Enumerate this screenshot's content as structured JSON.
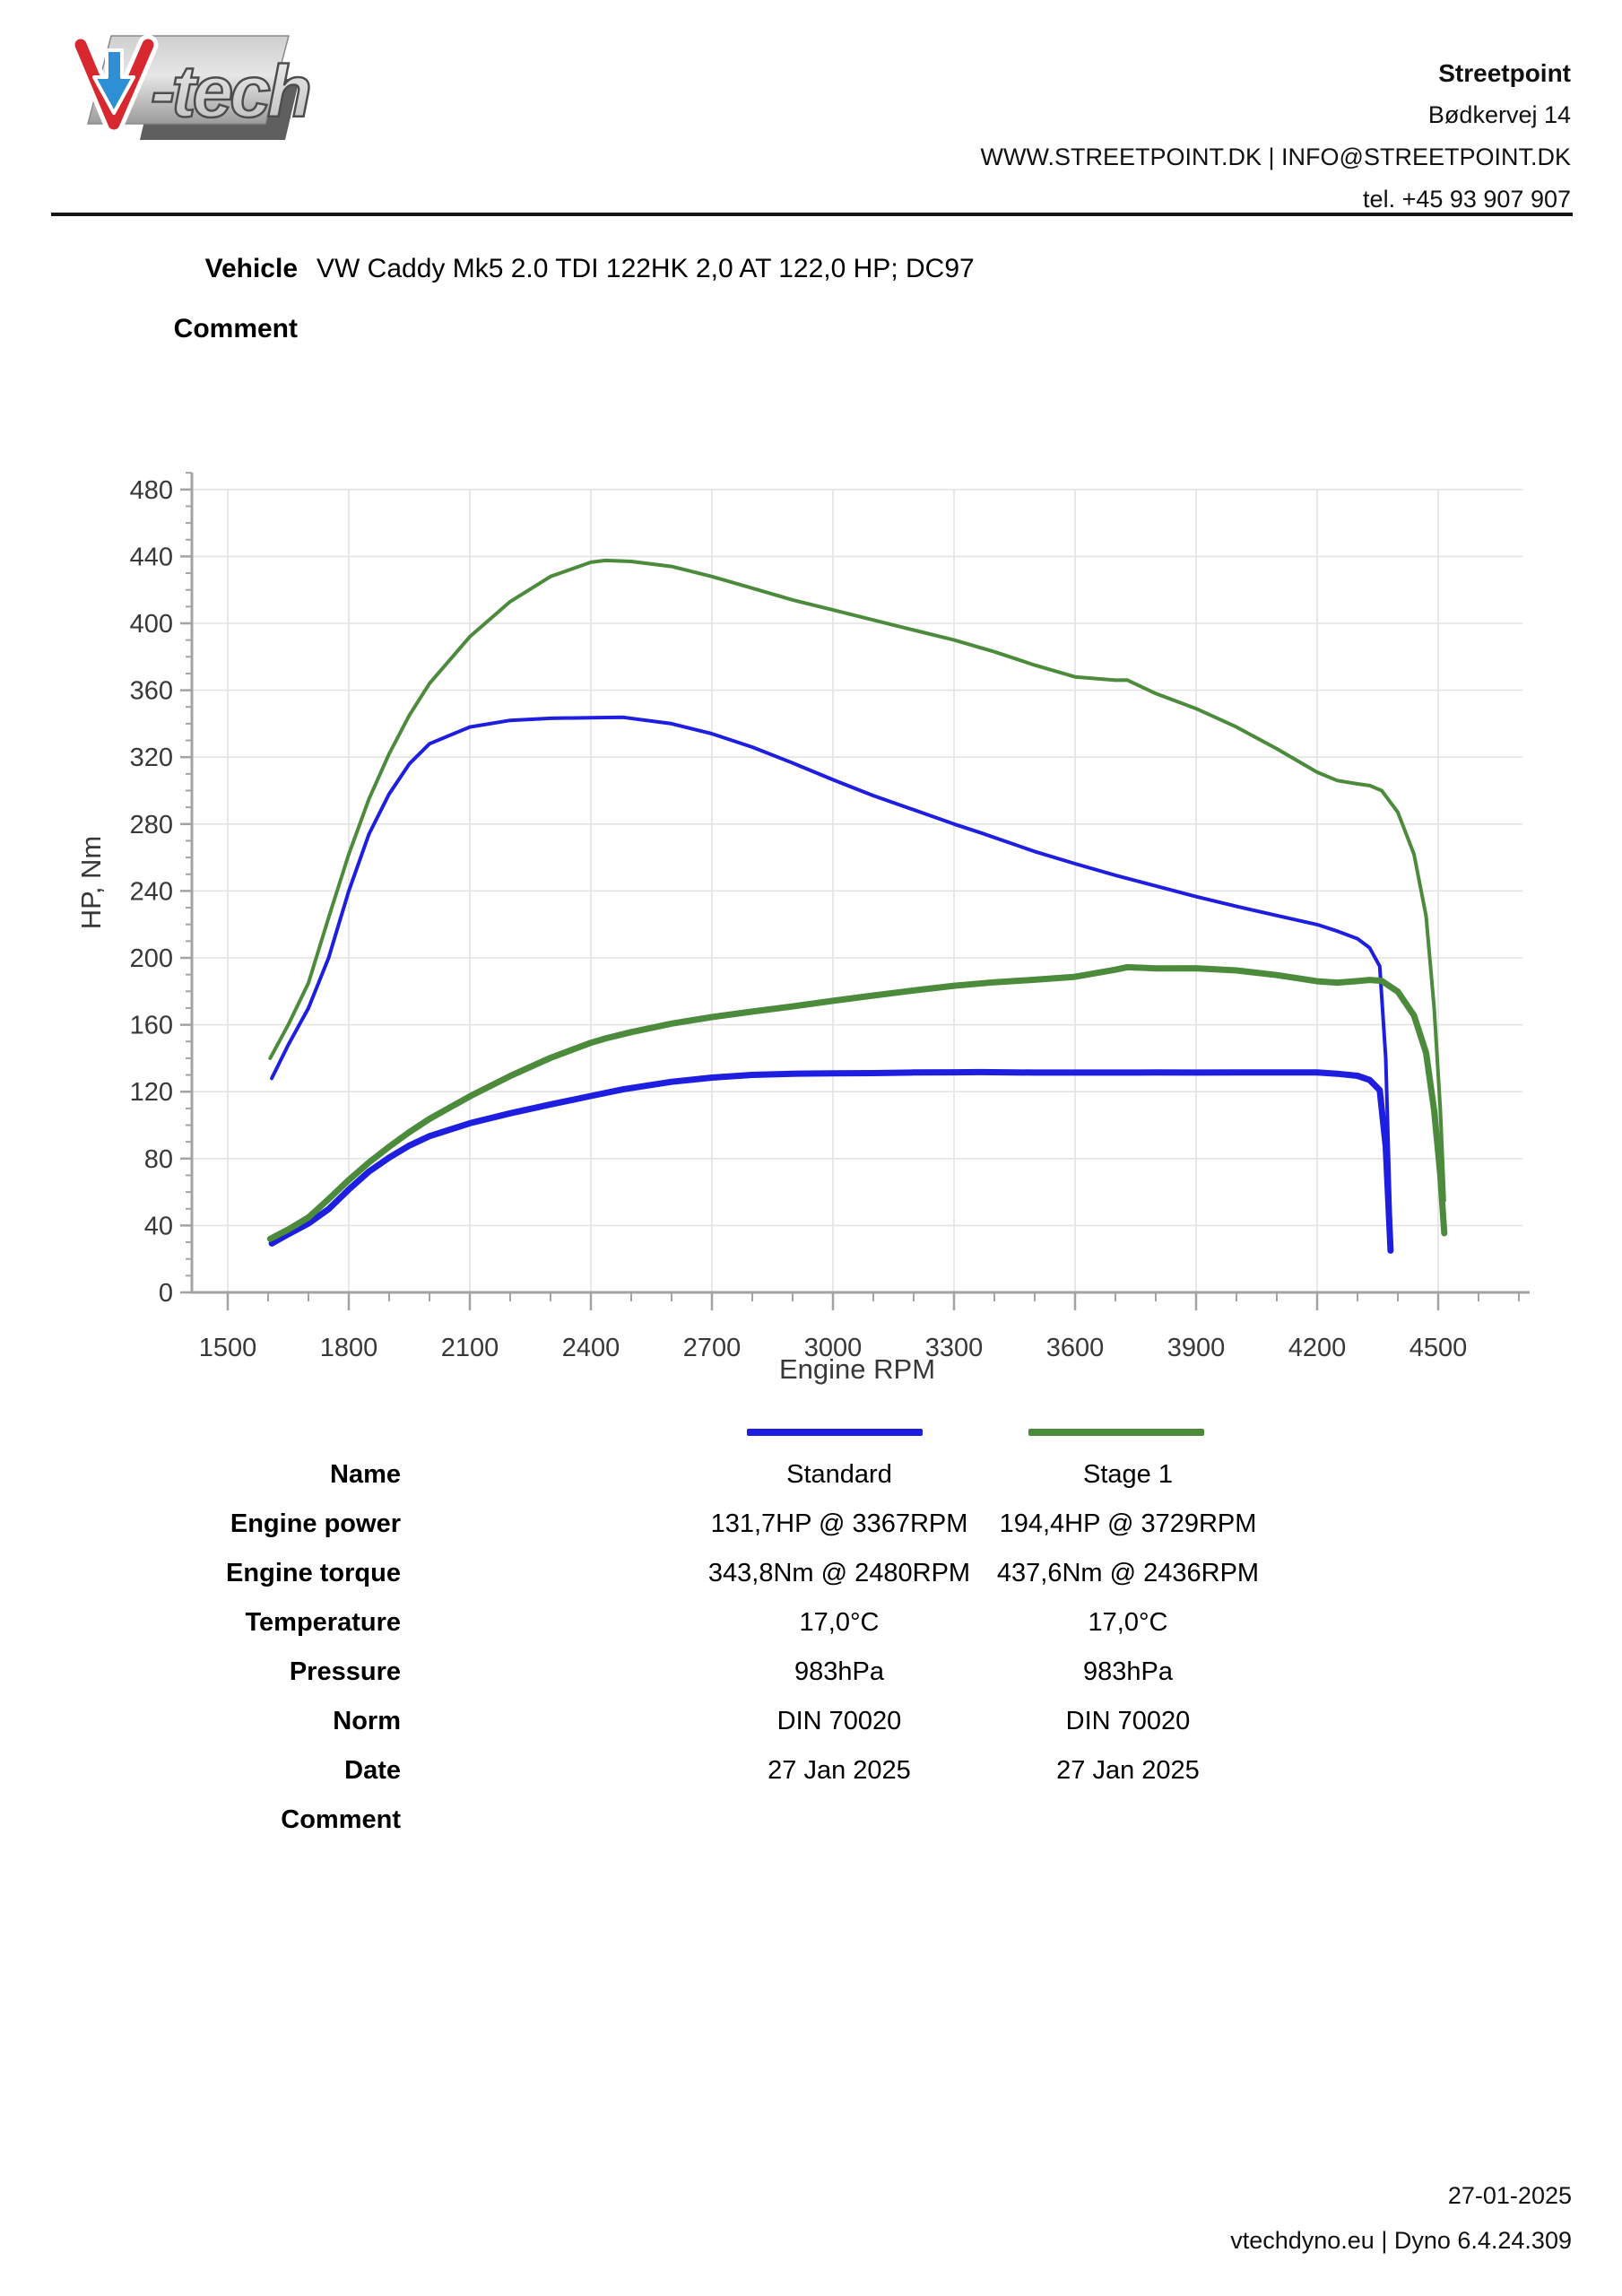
{
  "header": {
    "logo_alt": "V-tech",
    "logo_text": "-tech",
    "company": "Streetpoint",
    "address": "Bødkervej 14",
    "web_email": "WWW.STREETPOINT.DK | INFO@STREETPOINT.DK",
    "phone": "tel. +45 93 907 907"
  },
  "vehicle": {
    "label": "Vehicle",
    "value": "VW Caddy Mk5 2.0 TDI 122HK 2,0 AT 122,0 HP; DC97"
  },
  "comment": {
    "label": "Comment"
  },
  "chart_data": {
    "type": "line",
    "title": "",
    "xlabel": "Engine RPM",
    "ylabel": "HP, Nm",
    "xlim": [
      1411,
      4709
    ],
    "ylim": [
      0,
      489
    ],
    "x_ticks": [
      1500,
      1800,
      2100,
      2400,
      2700,
      3000,
      3300,
      3600,
      3900,
      4200,
      4500
    ],
    "y_ticks": [
      0,
      40,
      80,
      120,
      160,
      200,
      240,
      280,
      320,
      360,
      400,
      440,
      480
    ],
    "x_minor_step": 100,
    "y_minor_step": 10,
    "grid": true,
    "colors": {
      "standard": "#1e1ee0",
      "stage1": "#4c8a3c",
      "grid": "#e3e3e3",
      "axis": "#a3a3a3",
      "tick_text": "#383838"
    },
    "series": [
      {
        "name": "Standard torque",
        "unit": "Nm",
        "color": "#1e1ee0",
        "line_width": 4,
        "rpm": [
          1609,
          1650,
          1700,
          1750,
          1800,
          1850,
          1900,
          1950,
          2000,
          2100,
          2200,
          2300,
          2400,
          2480,
          2600,
          2700,
          2800,
          2900,
          3000,
          3100,
          3200,
          3300,
          3367,
          3500,
          3600,
          3700,
          3800,
          3900,
          4000,
          4100,
          4200,
          4250,
          4300,
          4330,
          4355,
          4370,
          4382
        ],
        "values": [
          128,
          148,
          170,
          200,
          240,
          274,
          298,
          316,
          328,
          338,
          342,
          343.2,
          343.6,
          343.8,
          340,
          334,
          326,
          316.5,
          306.5,
          297,
          288.5,
          280,
          274.7,
          263.6,
          256.3,
          249.4,
          243,
          236.6,
          230.8,
          225.3,
          219.9,
          216,
          211.5,
          206,
          195,
          140,
          40
        ]
      },
      {
        "name": "Stage 1 torque",
        "unit": "Nm",
        "color": "#4c8a3c",
        "line_width": 4,
        "rpm": [
          1605,
          1650,
          1700,
          1750,
          1800,
          1850,
          1900,
          1950,
          2000,
          2100,
          2200,
          2300,
          2400,
          2436,
          2500,
          2600,
          2700,
          2800,
          2900,
          3000,
          3100,
          3200,
          3300,
          3400,
          3500,
          3600,
          3700,
          3729,
          3800,
          3900,
          4000,
          4100,
          4200,
          4250,
          4300,
          4330,
          4360,
          4400,
          4440,
          4470,
          4490,
          4505,
          4515
        ],
        "values": [
          140,
          160,
          185,
          224,
          262,
          295,
          322,
          345,
          364,
          392,
          413,
          428,
          436.5,
          437.6,
          437,
          434,
          428,
          421,
          414,
          408,
          402,
          396,
          390,
          383,
          375,
          368,
          366,
          366.1,
          358,
          349,
          338,
          325,
          311,
          306,
          304,
          303,
          300,
          287,
          262,
          225,
          170,
          110,
          55
        ]
      },
      {
        "name": "Standard power",
        "unit": "HP",
        "color": "#1e1ee0",
        "line_width": 7,
        "rpm": [
          1609,
          1650,
          1700,
          1750,
          1800,
          1850,
          1900,
          1950,
          2000,
          2100,
          2200,
          2300,
          2400,
          2480,
          2600,
          2700,
          2800,
          2900,
          3000,
          3100,
          3200,
          3300,
          3367,
          3500,
          3600,
          3700,
          3800,
          3900,
          4000,
          4100,
          4200,
          4250,
          4300,
          4330,
          4355,
          4370,
          4382
        ],
        "values": [
          29.3,
          34.8,
          41.2,
          49.8,
          61.5,
          72.2,
          80.6,
          87.8,
          93.4,
          101.1,
          107.1,
          112.4,
          117.4,
          121.4,
          125.9,
          128.4,
          130,
          130.7,
          131,
          131.1,
          131.5,
          131.6,
          131.7,
          131.4,
          131.4,
          131.4,
          131.5,
          131.4,
          131.5,
          131.5,
          131.5,
          130.7,
          129.5,
          127,
          120.9,
          87.1,
          25
        ]
      },
      {
        "name": "Stage 1 power",
        "unit": "HP",
        "color": "#4c8a3c",
        "line_width": 7,
        "rpm": [
          1605,
          1650,
          1700,
          1750,
          1800,
          1850,
          1900,
          1950,
          2000,
          2100,
          2200,
          2300,
          2400,
          2436,
          2500,
          2600,
          2700,
          2800,
          2900,
          3000,
          3100,
          3200,
          3300,
          3400,
          3500,
          3600,
          3700,
          3729,
          3800,
          3900,
          4000,
          4100,
          4200,
          4250,
          4300,
          4330,
          4360,
          4400,
          4440,
          4470,
          4490,
          4505,
          4515
        ],
        "values": [
          32,
          37.6,
          44.8,
          55.8,
          67.2,
          77.7,
          87.1,
          95.8,
          103.7,
          117.2,
          129.4,
          140.2,
          149.2,
          151.8,
          155.6,
          160.7,
          164.6,
          167.9,
          171,
          174.3,
          177.5,
          180.5,
          183.3,
          185.4,
          186.9,
          188.7,
          192.9,
          194.4,
          193.7,
          193.8,
          192.5,
          189.7,
          186,
          185.2,
          186.1,
          186.8,
          186.3,
          179.8,
          165.6,
          143.2,
          108.7,
          70.6,
          35.4
        ]
      }
    ],
    "legend_position": "below"
  },
  "table": {
    "rows": [
      {
        "label": "Name",
        "standard": "Standard",
        "stage1": "Stage 1"
      },
      {
        "label": "Engine power",
        "standard": "131,7HP @ 3367RPM",
        "stage1": "194,4HP @ 3729RPM"
      },
      {
        "label": "Engine torque",
        "standard": "343,8Nm @ 2480RPM",
        "stage1": "437,6Nm @ 2436RPM"
      },
      {
        "label": "Temperature",
        "standard": "17,0°C",
        "stage1": "17,0°C"
      },
      {
        "label": "Pressure",
        "standard": "983hPa",
        "stage1": "983hPa"
      },
      {
        "label": "Norm",
        "standard": "DIN 70020",
        "stage1": "DIN 70020"
      },
      {
        "label": "Date",
        "standard": "27 Jan 2025",
        "stage1": "27 Jan 2025"
      },
      {
        "label": "Comment",
        "standard": "",
        "stage1": ""
      }
    ]
  },
  "footer": {
    "date": "27-01-2025",
    "app": "vtechdyno.eu | Dyno 6.4.24.309"
  }
}
